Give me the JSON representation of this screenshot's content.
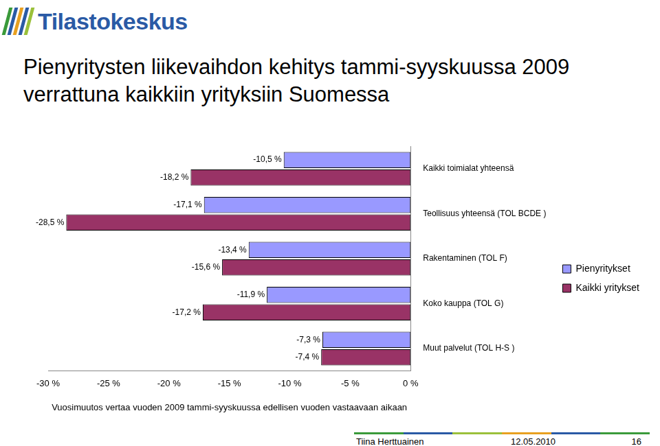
{
  "logo": "Tilastokeskus",
  "footer": {
    "author": "Tiina Herttuainen",
    "date": "12.05.2010",
    "page": "16"
  },
  "chart_data": {
    "type": "bar",
    "orientation": "horizontal",
    "title": "Pienyritysten liikevaihdon kehitys tammi-syyskuussa 2009 verrattuna kaikkiin yrityksiin Suomessa",
    "x_label": "Vuosimuutos vertaa vuoden 2009 tammi-syyskuussa edellisen vuoden vastaavaan aikaan",
    "categories": [
      "Kaikki toimialat yhteensä",
      "Teollisuus yhteensä (TOL BCDE )",
      "Rakentaminen (TOL F)",
      "Koko kauppa (TOL G)",
      "Muut palvelut (TOL H-S )"
    ],
    "series": [
      {
        "name": "Pienyritykset",
        "color": "#9999ff",
        "values": [
          -10.5,
          -17.1,
          -13.4,
          -11.9,
          -7.3
        ],
        "value_labels": [
          "-10,5 %",
          "-17,1 %",
          "-13,4 %",
          "-11,9 %",
          "-7,3 %"
        ]
      },
      {
        "name": "Kaikki yritykset",
        "color": "#993366",
        "values": [
          -18.2,
          -28.5,
          -15.6,
          -17.2,
          -7.4
        ],
        "value_labels": [
          "-18,2 %",
          "-28,5 %",
          "-15,6 %",
          "-17,2 %",
          "-7,4 %"
        ]
      }
    ],
    "xlim": [
      -30,
      0
    ],
    "xticks": [
      {
        "value": -30,
        "label": "-30 %"
      },
      {
        "value": -25,
        "label": "-25 %"
      },
      {
        "value": -20,
        "label": "-20 %"
      },
      {
        "value": -15,
        "label": "-15 %"
      },
      {
        "value": -10,
        "label": "-10 %"
      },
      {
        "value": -5,
        "label": "-5 %"
      },
      {
        "value": 0,
        "label": "0 %"
      }
    ],
    "grid": false,
    "legend": "right",
    "data_labels": true
  }
}
